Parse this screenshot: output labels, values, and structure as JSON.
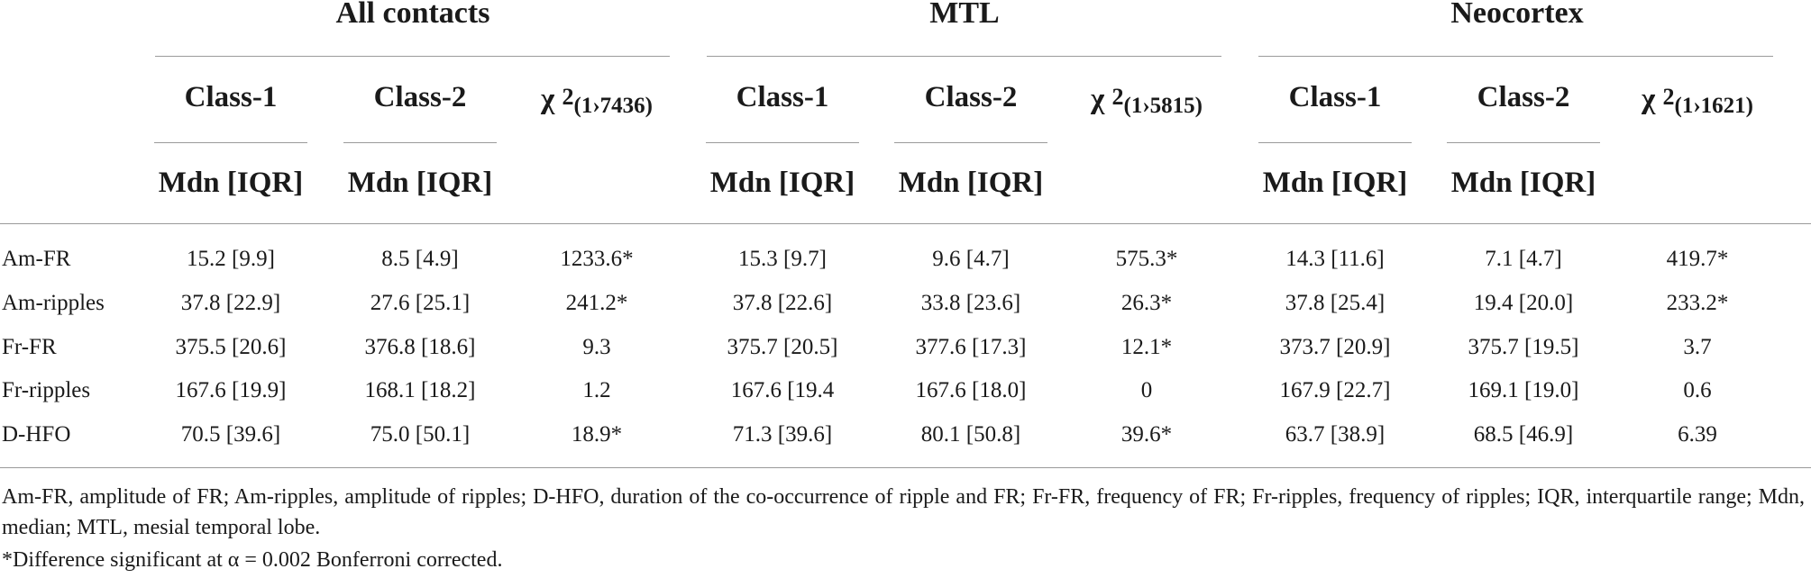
{
  "table": {
    "groups": [
      {
        "label": "All contacts",
        "chi_df": "(1›7436)"
      },
      {
        "label": "MTL",
        "chi_df": "(1›5815)"
      },
      {
        "label": "Neocortex",
        "chi_df": "(1›1621)"
      }
    ],
    "class1_label": "Class-1",
    "class2_label": "Class-2",
    "chi_symbol": "χ ",
    "chi_power": "2",
    "mdn_label": "Mdn [IQR]",
    "rows": [
      {
        "label": "Am-FR",
        "cells": [
          "15.2 [9.9]",
          "8.5 [4.9]",
          "1233.6*",
          "15.3 [9.7]",
          "9.6 [4.7]",
          "575.3*",
          "14.3 [11.6]",
          "7.1 [4.7]",
          "419.7*"
        ]
      },
      {
        "label": "Am-ripples",
        "cells": [
          "37.8 [22.9]",
          "27.6 [25.1]",
          "241.2*",
          "37.8 [22.6]",
          "33.8 [23.6]",
          "26.3*",
          "37.8 [25.4]",
          "19.4 [20.0]",
          "233.2*"
        ]
      },
      {
        "label": "Fr-FR",
        "cells": [
          "375.5 [20.6]",
          "376.8 [18.6]",
          "9.3",
          "375.7 [20.5]",
          "377.6 [17.3]",
          "12.1*",
          "373.7 [20.9]",
          "375.7 [19.5]",
          "3.7"
        ]
      },
      {
        "label": "Fr-ripples",
        "cells": [
          "167.6 [19.9]",
          "168.1 [18.2]",
          "1.2",
          "167.6 [19.4",
          "167.6 [18.0]",
          "0",
          "167.9 [22.7]",
          "169.1 [19.0]",
          "0.6"
        ]
      },
      {
        "label": "D-HFO",
        "cells": [
          "70.5 [39.6]",
          "75.0 [50.1]",
          "18.9*",
          "71.3 [39.6]",
          "80.1 [50.8]",
          "39.6*",
          "63.7 [38.9]",
          "68.5 [46.9]",
          "6.39"
        ]
      }
    ]
  },
  "footnotes": {
    "abbreviations": "Am-FR, amplitude of FR; Am-ripples, amplitude of ripples; D-HFO, duration of the co-occurrence of ripple and FR; Fr-FR, frequency of FR; Fr-ripples, frequency of ripples; IQR, interquartile range; Mdn, median; MTL, mesial temporal lobe.",
    "significance": "*Difference significant at α = 0.002 Bonferroni corrected."
  }
}
